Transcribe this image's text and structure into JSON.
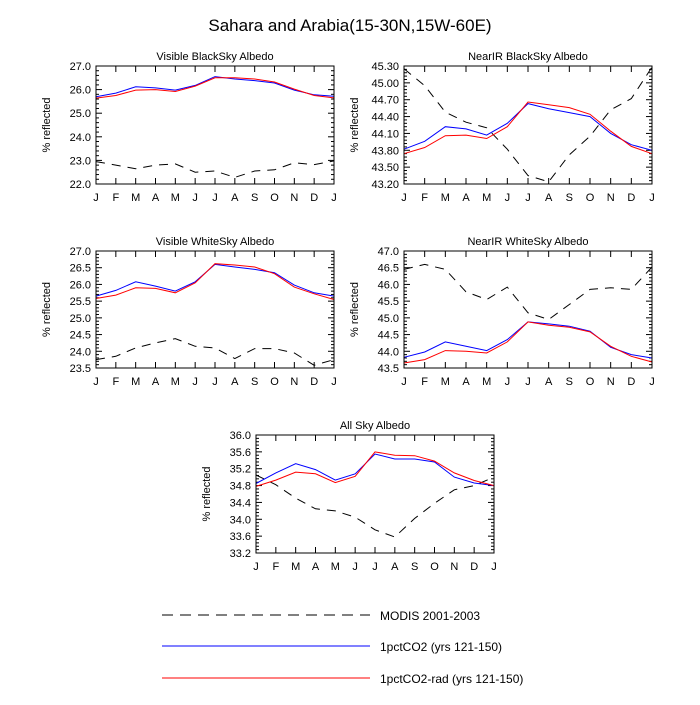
{
  "title": "Sahara and Arabia(15-30N,15W-60E)",
  "ylabel": "% reflected",
  "months": [
    "J",
    "F",
    "M",
    "A",
    "M",
    "J",
    "J",
    "A",
    "S",
    "O",
    "N",
    "D",
    "J"
  ],
  "legend": [
    {
      "label": "MODIS 2001-2003",
      "color": "#000000",
      "dash": "dashed"
    },
    {
      "label": "1pctCO2 (yrs 121-150)",
      "color": "#0000ff",
      "dash": "solid"
    },
    {
      "label": "1pctCO2-rad (yrs 121-150)",
      "color": "#ff0000",
      "dash": "solid"
    }
  ],
  "chart_data": [
    {
      "type": "line",
      "title": "Visible BlackSky Albedo",
      "ylabel": "% reflected",
      "categories": [
        "J",
        "F",
        "M",
        "A",
        "M",
        "J",
        "J",
        "A",
        "S",
        "O",
        "N",
        "D",
        "J"
      ],
      "ylim": [
        22.0,
        27.0
      ],
      "yticks": [
        "27.0",
        "26.0",
        "25.0",
        "24.0",
        "23.0",
        "22.0"
      ],
      "series": [
        {
          "name": "MODIS 2001-2003",
          "values": [
            22.95,
            22.8,
            22.65,
            22.8,
            22.85,
            22.5,
            22.55,
            22.28,
            22.55,
            22.6,
            22.9,
            22.82,
            22.98
          ]
        },
        {
          "name": "1pctCO2 (yrs 121-150)",
          "values": [
            25.7,
            25.85,
            26.12,
            26.07,
            25.98,
            26.18,
            26.55,
            26.45,
            26.38,
            26.28,
            25.98,
            25.78,
            25.72
          ]
        },
        {
          "name": "1pctCO2-rad (yrs 121-150)",
          "values": [
            25.64,
            25.75,
            25.98,
            26.0,
            25.92,
            26.15,
            26.5,
            26.5,
            26.45,
            26.32,
            26.02,
            25.75,
            25.65
          ]
        }
      ]
    },
    {
      "type": "line",
      "title": "NearIR BlackSky Albedo",
      "ylabel": "% reflected",
      "categories": [
        "J",
        "F",
        "M",
        "A",
        "M",
        "J",
        "J",
        "A",
        "S",
        "O",
        "N",
        "D",
        "J"
      ],
      "ylim": [
        43.2,
        45.3
      ],
      "yticks": [
        "45.30",
        "45.00",
        "44.70",
        "44.40",
        "44.10",
        "43.80",
        "43.50",
        "43.20"
      ],
      "series": [
        {
          "name": "MODIS 2001-2003",
          "values": [
            45.25,
            44.95,
            44.48,
            44.3,
            44.2,
            43.82,
            43.35,
            43.24,
            43.72,
            44.05,
            44.52,
            44.72,
            45.28
          ]
        },
        {
          "name": "1pctCO2 (yrs 121-150)",
          "values": [
            43.82,
            43.96,
            44.22,
            44.18,
            44.07,
            44.28,
            44.63,
            44.54,
            44.47,
            44.4,
            44.1,
            43.9,
            43.8
          ]
        },
        {
          "name": "1pctCO2-rad (yrs 121-150)",
          "values": [
            43.74,
            43.85,
            44.06,
            44.07,
            44.01,
            44.22,
            44.66,
            44.61,
            44.56,
            44.44,
            44.14,
            43.87,
            43.74
          ]
        }
      ]
    },
    {
      "type": "line",
      "title": "Visible WhiteSky Albedo",
      "ylabel": "% reflected",
      "categories": [
        "J",
        "F",
        "M",
        "A",
        "M",
        "J",
        "J",
        "A",
        "S",
        "O",
        "N",
        "D",
        "J"
      ],
      "ylim": [
        23.5,
        27.0
      ],
      "yticks": [
        "27.0",
        "26.5",
        "26.0",
        "25.5",
        "25.0",
        "24.5",
        "24.0",
        "23.5"
      ],
      "series": [
        {
          "name": "MODIS 2001-2003",
          "values": [
            23.75,
            23.85,
            24.1,
            24.25,
            24.38,
            24.15,
            24.1,
            23.78,
            24.08,
            24.08,
            23.95,
            23.58,
            23.75
          ]
        },
        {
          "name": "1pctCO2 (yrs 121-150)",
          "values": [
            25.65,
            25.82,
            26.08,
            25.95,
            25.8,
            26.08,
            26.6,
            26.52,
            26.45,
            26.35,
            25.98,
            25.75,
            25.65
          ]
        },
        {
          "name": "1pctCO2-rad (yrs 121-150)",
          "values": [
            25.58,
            25.68,
            25.9,
            25.88,
            25.75,
            26.05,
            26.62,
            26.58,
            26.52,
            26.32,
            25.92,
            25.72,
            25.55
          ]
        }
      ]
    },
    {
      "type": "line",
      "title": "NearIR WhiteSky Albedo",
      "ylabel": "% reflected",
      "categories": [
        "J",
        "F",
        "M",
        "A",
        "M",
        "J",
        "J",
        "A",
        "S",
        "O",
        "N",
        "D",
        "J"
      ],
      "ylim": [
        43.5,
        47.0
      ],
      "yticks": [
        "47.0",
        "46.5",
        "46.0",
        "45.5",
        "45.0",
        "44.5",
        "44.0",
        "43.5"
      ],
      "series": [
        {
          "name": "MODIS 2001-2003",
          "values": [
            46.45,
            46.6,
            46.45,
            45.78,
            45.55,
            45.92,
            45.15,
            44.95,
            45.4,
            45.85,
            45.9,
            45.85,
            46.52
          ]
        },
        {
          "name": "1pctCO2 (yrs 121-150)",
          "values": [
            43.82,
            43.98,
            44.28,
            44.15,
            44.02,
            44.35,
            44.88,
            44.82,
            44.75,
            44.6,
            44.12,
            43.9,
            43.8
          ]
        },
        {
          "name": "1pctCO2-rad (yrs 121-150)",
          "values": [
            43.65,
            43.75,
            44.02,
            44.0,
            43.95,
            44.28,
            44.88,
            44.78,
            44.72,
            44.58,
            44.15,
            43.85,
            43.68
          ]
        }
      ]
    },
    {
      "type": "line",
      "title": "All Sky Albedo",
      "ylabel": "% reflected",
      "categories": [
        "J",
        "F",
        "M",
        "A",
        "M",
        "J",
        "J",
        "A",
        "S",
        "O",
        "N",
        "D",
        "J"
      ],
      "ylim": [
        33.2,
        36.0
      ],
      "yticks": [
        "36.0",
        "35.6",
        "35.2",
        "34.8",
        "34.4",
        "34.0",
        "33.6",
        "33.2"
      ],
      "series": [
        {
          "name": "MODIS 2001-2003",
          "values": [
            35.05,
            34.82,
            34.5,
            34.25,
            34.2,
            34.05,
            33.75,
            33.58,
            34.02,
            34.38,
            34.7,
            34.8,
            35.0
          ]
        },
        {
          "name": "1pctCO2 (yrs 121-150)",
          "values": [
            34.85,
            35.1,
            35.32,
            35.18,
            34.93,
            35.08,
            35.55,
            35.43,
            35.43,
            35.36,
            35.0,
            34.86,
            34.8
          ]
        },
        {
          "name": "1pctCO2-rad (yrs 121-150)",
          "values": [
            34.78,
            34.93,
            35.12,
            35.08,
            34.87,
            35.02,
            35.6,
            35.52,
            35.51,
            35.38,
            35.1,
            34.92,
            34.8
          ]
        }
      ]
    }
  ]
}
